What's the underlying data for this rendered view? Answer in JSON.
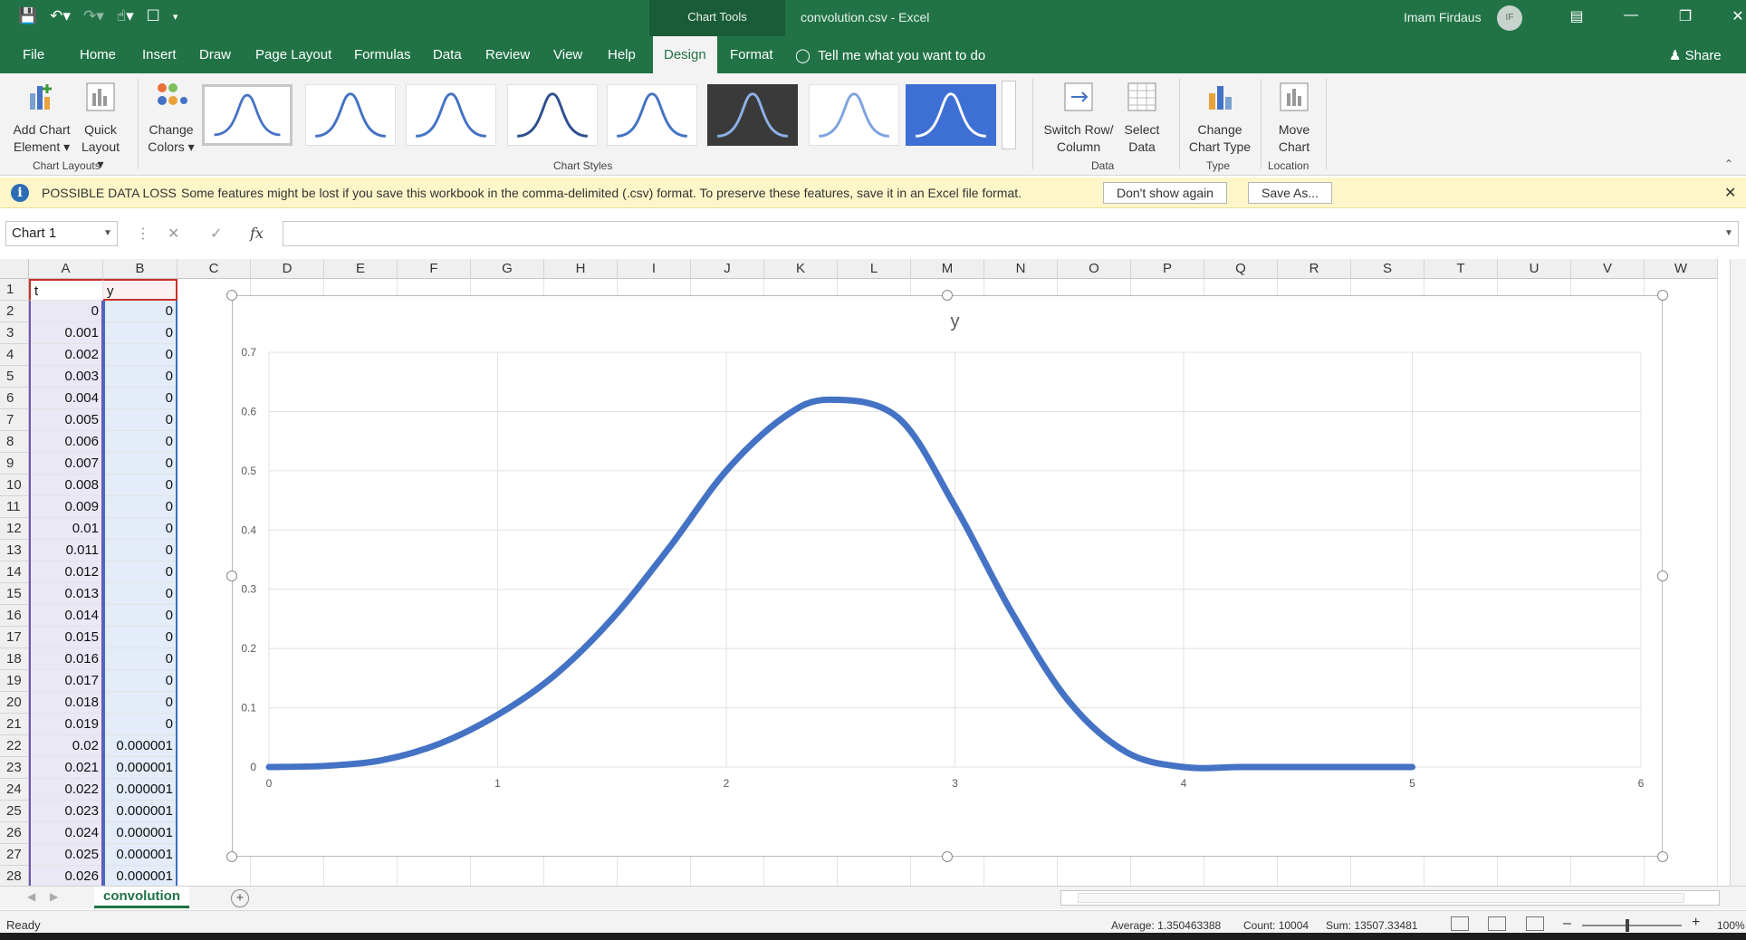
{
  "window": {
    "title": "convolution.csv  -  Excel",
    "contextual_group": "Chart Tools",
    "user_name": "Imam Firdaus",
    "user_initials": "IF"
  },
  "tabs": [
    {
      "label": "File",
      "active": false
    },
    {
      "label": "Home",
      "active": false
    },
    {
      "label": "Insert",
      "active": false
    },
    {
      "label": "Draw",
      "active": false
    },
    {
      "label": "Page Layout",
      "active": false
    },
    {
      "label": "Formulas",
      "active": false
    },
    {
      "label": "Data",
      "active": false
    },
    {
      "label": "Review",
      "active": false
    },
    {
      "label": "View",
      "active": false
    },
    {
      "label": "Help",
      "active": false
    },
    {
      "label": "Design",
      "active": true
    },
    {
      "label": "Format",
      "active": false
    }
  ],
  "tell_me": "Tell me what you want to do",
  "share_label": "Share",
  "ribbon": {
    "add_chart_element": [
      "Add Chart",
      "Element"
    ],
    "quick_layout": [
      "Quick",
      "Layout"
    ],
    "change_colors": [
      "Change",
      "Colors"
    ],
    "switch_row_col": [
      "Switch Row/",
      "Column"
    ],
    "select_data": [
      "Select",
      "Data"
    ],
    "change_chart_type": [
      "Change",
      "Chart Type"
    ],
    "move_chart": [
      "Move",
      "Chart"
    ],
    "group_chart_layouts": "Chart Layouts",
    "group_chart_styles": "Chart Styles",
    "group_data": "Data",
    "group_type": "Type",
    "group_location": "Location"
  },
  "message_bar": {
    "title": "POSSIBLE DATA LOSS",
    "text": "Some features might be lost if you save this workbook in the comma-delimited (.csv) format. To preserve these features, save it in an Excel file format.",
    "dont_show": "Don't show again",
    "save_as": "Save As..."
  },
  "name_box": "Chart 1",
  "columns": [
    "A",
    "B",
    "C",
    "D",
    "E",
    "F",
    "G",
    "H",
    "I",
    "J",
    "K",
    "L",
    "M",
    "N",
    "O",
    "P",
    "Q",
    "R",
    "S",
    "T",
    "U",
    "V",
    "W"
  ],
  "rows": [
    {
      "num": "1",
      "a": "t",
      "b": "y"
    },
    {
      "num": "2",
      "a": "0",
      "b": "0"
    },
    {
      "num": "3",
      "a": "0.001",
      "b": "0"
    },
    {
      "num": "4",
      "a": "0.002",
      "b": "0"
    },
    {
      "num": "5",
      "a": "0.003",
      "b": "0"
    },
    {
      "num": "6",
      "a": "0.004",
      "b": "0"
    },
    {
      "num": "7",
      "a": "0.005",
      "b": "0"
    },
    {
      "num": "8",
      "a": "0.006",
      "b": "0"
    },
    {
      "num": "9",
      "a": "0.007",
      "b": "0"
    },
    {
      "num": "10",
      "a": "0.008",
      "b": "0"
    },
    {
      "num": "11",
      "a": "0.009",
      "b": "0"
    },
    {
      "num": "12",
      "a": "0.01",
      "b": "0"
    },
    {
      "num": "13",
      "a": "0.011",
      "b": "0"
    },
    {
      "num": "14",
      "a": "0.012",
      "b": "0"
    },
    {
      "num": "15",
      "a": "0.013",
      "b": "0"
    },
    {
      "num": "16",
      "a": "0.014",
      "b": "0"
    },
    {
      "num": "17",
      "a": "0.015",
      "b": "0"
    },
    {
      "num": "18",
      "a": "0.016",
      "b": "0"
    },
    {
      "num": "19",
      "a": "0.017",
      "b": "0"
    },
    {
      "num": "20",
      "a": "0.018",
      "b": "0"
    },
    {
      "num": "21",
      "a": "0.019",
      "b": "0"
    },
    {
      "num": "22",
      "a": "0.02",
      "b": "0.000001"
    },
    {
      "num": "23",
      "a": "0.021",
      "b": "0.000001"
    },
    {
      "num": "24",
      "a": "0.022",
      "b": "0.000001"
    },
    {
      "num": "25",
      "a": "0.023",
      "b": "0.000001"
    },
    {
      "num": "26",
      "a": "0.024",
      "b": "0.000001"
    },
    {
      "num": "27",
      "a": "0.025",
      "b": "0.000001"
    },
    {
      "num": "28",
      "a": "0.026",
      "b": "0.000001"
    }
  ],
  "chart_data": {
    "type": "scatter",
    "title": "y",
    "xlabel": "",
    "ylabel": "",
    "xlim": [
      0,
      6
    ],
    "ylim": [
      0,
      0.7
    ],
    "x_ticks": [
      "0",
      "1",
      "2",
      "3",
      "4",
      "5",
      "6"
    ],
    "y_ticks": [
      "0",
      "0.1",
      "0.2",
      "0.3",
      "0.4",
      "0.5",
      "0.6",
      "0.7"
    ],
    "grid": true,
    "legend": "none",
    "line_color": "#4472C4",
    "series": [
      {
        "x": [
          0,
          0.25,
          0.5,
          0.75,
          1,
          1.25,
          1.5,
          1.75,
          2,
          2.25,
          2.45,
          2.75,
          3,
          3.25,
          3.5,
          3.75,
          4,
          4.25,
          4.5,
          4.75,
          5
        ],
        "values": [
          0,
          0.002,
          0.012,
          0.04,
          0.088,
          0.155,
          0.25,
          0.37,
          0.5,
          0.59,
          0.62,
          0.59,
          0.44,
          0.26,
          0.11,
          0.025,
          0,
          0,
          0,
          0,
          0
        ]
      }
    ]
  },
  "sheet_tab": "convolution",
  "status": {
    "ready": "Ready",
    "average": "Average: 1.350463388",
    "count": "Count: 10004",
    "sum": "Sum: 13507.33481",
    "zoom": "100%"
  }
}
